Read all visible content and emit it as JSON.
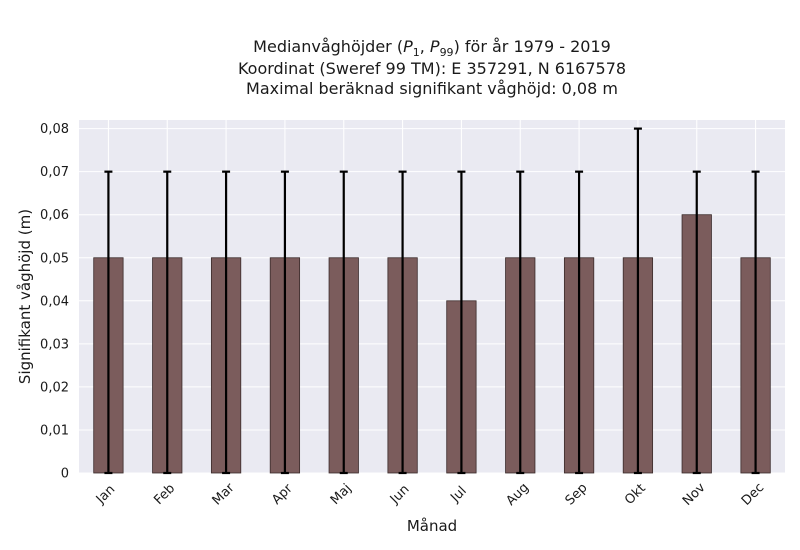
{
  "chart_data": {
    "type": "bar",
    "title_lines": [
      "Medianvåghöjder (P1, P99) för år 1979 - 2019",
      "Koordinat (Sweref 99 TM): E 357291, N 6167578",
      "Maximal beräknad signifikant våghöjd: 0,08 m"
    ],
    "xlabel": "Månad",
    "ylabel": "Signifikant våghöjd (m)",
    "categories": [
      "Jan",
      "Feb",
      "Mar",
      "Apr",
      "Maj",
      "Jun",
      "Jul",
      "Aug",
      "Sep",
      "Okt",
      "Nov",
      "Dec"
    ],
    "values": [
      0.05,
      0.05,
      0.05,
      0.05,
      0.05,
      0.05,
      0.04,
      0.05,
      0.05,
      0.05,
      0.06,
      0.05
    ],
    "err_low": [
      0,
      0,
      0,
      0,
      0,
      0,
      0,
      0,
      0,
      0,
      0,
      0
    ],
    "err_high": [
      0.07,
      0.07,
      0.07,
      0.07,
      0.07,
      0.07,
      0.07,
      0.07,
      0.07,
      0.08,
      0.07,
      0.07
    ],
    "ylim": [
      0,
      0.082
    ],
    "yticks": [
      0,
      0.01,
      0.02,
      0.03,
      0.04,
      0.05,
      0.06,
      0.07,
      0.08
    ],
    "ytick_labels": [
      "0",
      "0,01",
      "0,02",
      "0,03",
      "0,04",
      "0,05",
      "0,06",
      "0,07",
      "0,08"
    ],
    "grid": true,
    "colors": {
      "bar": "#7b5c5c",
      "bar_edge": "#3a2a2a",
      "error": "#000000",
      "plot_bg": "#eaeaf2",
      "grid": "#ffffff"
    }
  }
}
